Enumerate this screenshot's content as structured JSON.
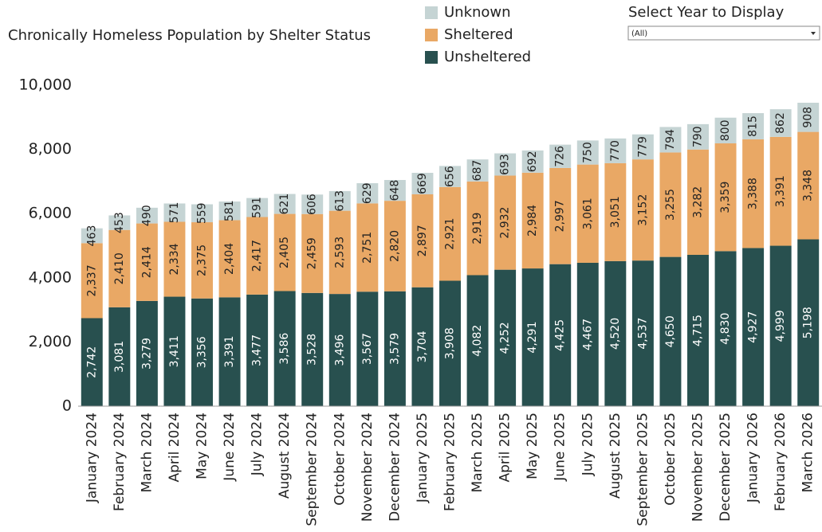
{
  "chart_data": {
    "type": "stacked_bar",
    "title": "Chronically Homeless Population by Shelter Status",
    "filter": {
      "label": "Select Year to Display",
      "value": "(All)"
    },
    "categories": [
      "January 2024",
      "February 2024",
      "March 2024",
      "April 2024",
      "May 2024",
      "June 2024",
      "July 2024",
      "August 2024",
      "September 2024",
      "October 2024",
      "November 2024",
      "December 2024",
      "January 2025",
      "February 2025",
      "March 2025",
      "April 2025",
      "May 2025",
      "June 2025",
      "July 2025",
      "August 2025",
      "September 2025",
      "October 2025",
      "November 2025",
      "December 2025",
      "January 2026",
      "February 2026",
      "March 2026"
    ],
    "series": [
      {
        "name": "Unsheltered",
        "color": "#28504f",
        "values": [
          2742,
          3081,
          3279,
          3411,
          3356,
          3391,
          3477,
          3586,
          3528,
          3496,
          3567,
          3579,
          3704,
          3908,
          4082,
          4252,
          4291,
          4425,
          4467,
          4520,
          4537,
          4650,
          4715,
          4830,
          4927,
          4999,
          5198
        ],
        "value_labels": [
          "2,742",
          "3,081",
          "3,279",
          "3,411",
          "3,356",
          "3,391",
          "3,477",
          "3,586",
          "3,528",
          "3,496",
          "3,567",
          "3,579",
          "3,704",
          "3,908",
          "4,082",
          "4,252",
          "4,291",
          "4,425",
          "4,467",
          "4,520",
          "4,537",
          "4,650",
          "4,715",
          "4,830",
          "4,927",
          "4,999",
          "5,198"
        ]
      },
      {
        "name": "Sheltered",
        "color": "#e9a865",
        "values": [
          2337,
          2410,
          2414,
          2334,
          2375,
          2404,
          2417,
          2405,
          2459,
          2593,
          2751,
          2820,
          2897,
          2921,
          2919,
          2932,
          2984,
          2997,
          3061,
          3051,
          3152,
          3255,
          3282,
          3359,
          3388,
          3391,
          3348
        ],
        "value_labels": [
          "2,337",
          "2,410",
          "2,414",
          "2,334",
          "2,375",
          "2,404",
          "2,417",
          "2,405",
          "2,459",
          "2,593",
          "2,751",
          "2,820",
          "2,897",
          "2,921",
          "2,919",
          "2,932",
          "2,984",
          "2,997",
          "3,061",
          "3,051",
          "3,152",
          "3,255",
          "3,282",
          "3,359",
          "3,388",
          "3,391",
          "3,348"
        ]
      },
      {
        "name": "Unknown",
        "color": "#c5d4d4",
        "values": [
          463,
          453,
          490,
          571,
          559,
          581,
          591,
          621,
          606,
          613,
          629,
          648,
          669,
          656,
          687,
          693,
          692,
          726,
          750,
          770,
          779,
          794,
          790,
          800,
          815,
          862,
          908
        ]
      }
    ],
    "ylim": [
      0,
      10000
    ],
    "yticks": [
      0,
      {
        "value": 2000,
        "label": "2,000"
      },
      {
        "value": 4000,
        "label": "4,000"
      },
      {
        "value": 6000,
        "label": "6,000"
      },
      {
        "value": 8000,
        "label": "8,000"
      },
      {
        "value": 10000,
        "label": "10,000"
      }
    ]
  }
}
